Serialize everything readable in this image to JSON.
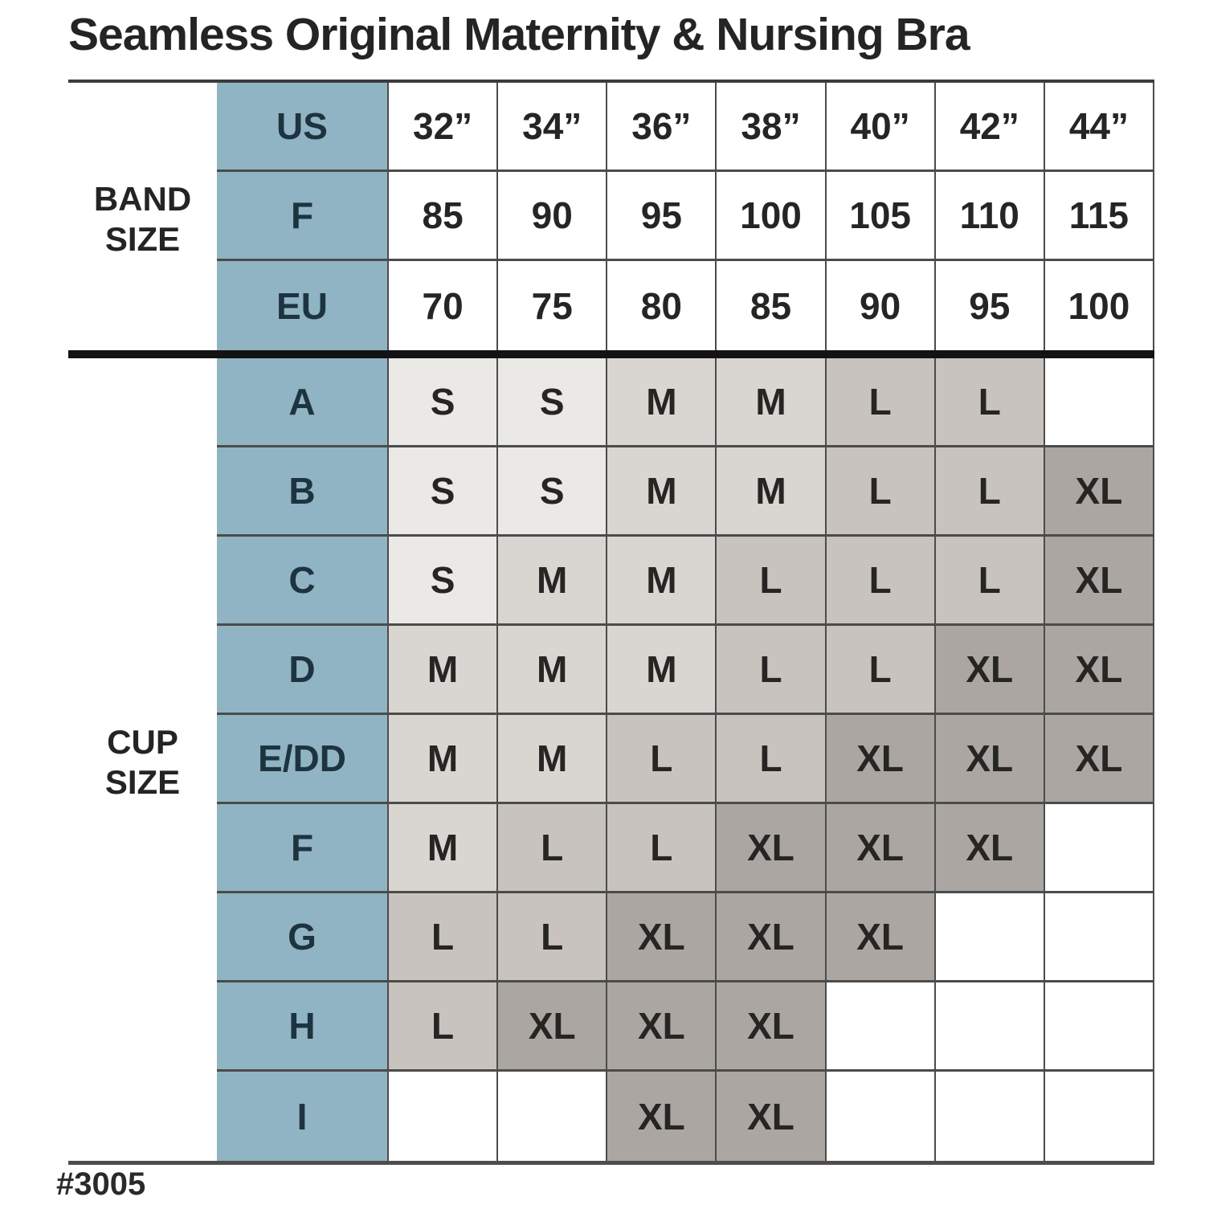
{
  "colors": {
    "blue": "#90b4c3",
    "blue_text": "#1d3440",
    "s": "#ebe9e6",
    "m": "#d9d5d1",
    "l": "#c8c3be",
    "xl": "#aba6a1",
    "empty": "#ffffff",
    "text": "#262523"
  },
  "footnote": "#3005",
  "chart_data": {
    "type": "table",
    "title": "Seamless Original Maternity & Nursing Bra",
    "shading_legend": "cell shade encodes size: S lightest, M light, L medium, XL darkest, blank means not available",
    "band": {
      "label": "BAND SIZE",
      "rows": [
        {
          "label": "US",
          "values": [
            "32”",
            "34”",
            "36”",
            "38”",
            "40”",
            "42”",
            "44”"
          ]
        },
        {
          "label": "F",
          "values": [
            "85",
            "90",
            "95",
            "100",
            "105",
            "110",
            "115"
          ]
        },
        {
          "label": "EU",
          "values": [
            "70",
            "75",
            "80",
            "85",
            "90",
            "95",
            "100"
          ]
        }
      ]
    },
    "cup": {
      "label": "CUP SIZE",
      "rows": [
        {
          "label": "A",
          "values": [
            "S",
            "S",
            "M",
            "M",
            "L",
            "L",
            ""
          ]
        },
        {
          "label": "B",
          "values": [
            "S",
            "S",
            "M",
            "M",
            "L",
            "L",
            "XL"
          ]
        },
        {
          "label": "C",
          "values": [
            "S",
            "M",
            "M",
            "L",
            "L",
            "L",
            "XL"
          ]
        },
        {
          "label": "D",
          "values": [
            "M",
            "M",
            "M",
            "L",
            "L",
            "XL",
            "XL"
          ]
        },
        {
          "label": "E/DD",
          "values": [
            "M",
            "M",
            "L",
            "L",
            "XL",
            "XL",
            "XL"
          ]
        },
        {
          "label": "F",
          "values": [
            "M",
            "L",
            "L",
            "XL",
            "XL",
            "XL",
            ""
          ]
        },
        {
          "label": "G",
          "values": [
            "L",
            "L",
            "XL",
            "XL",
            "XL",
            "",
            ""
          ]
        },
        {
          "label": "H",
          "values": [
            "L",
            "XL",
            "XL",
            "XL",
            "",
            "",
            ""
          ]
        },
        {
          "label": "I",
          "values": [
            "",
            "",
            "XL",
            "XL",
            "",
            "",
            ""
          ]
        }
      ]
    }
  }
}
